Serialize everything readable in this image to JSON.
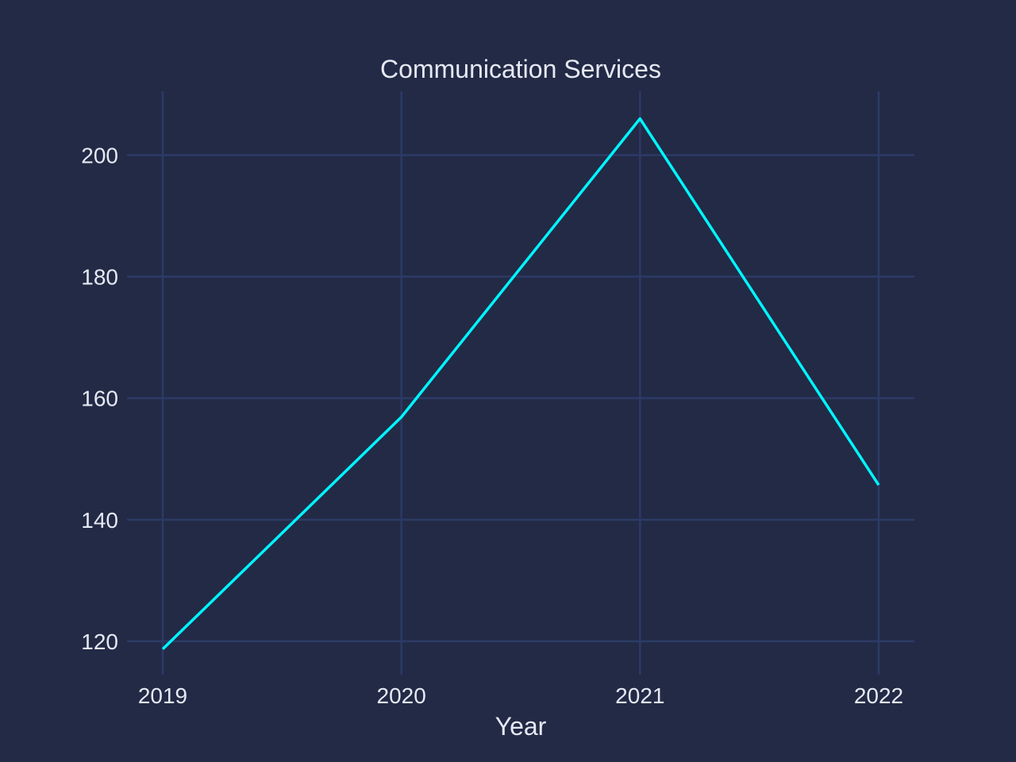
{
  "colors": {
    "background": "#222a46",
    "grid": "#2c3a66",
    "text": "#e6e9f2",
    "series": "#00f5ff"
  },
  "chart_data": {
    "type": "line",
    "title": "Communication Services",
    "xlabel": "Year",
    "ylabel": "",
    "x": [
      "2019",
      "2020",
      "2021",
      "2022"
    ],
    "series": [
      {
        "values": [
          118.7,
          156.9,
          206.0,
          145.7
        ]
      }
    ],
    "yticks": [
      120,
      140,
      160,
      180,
      200
    ],
    "ylim": [
      114.5,
      210.5
    ],
    "grid": true,
    "legend": "none"
  }
}
